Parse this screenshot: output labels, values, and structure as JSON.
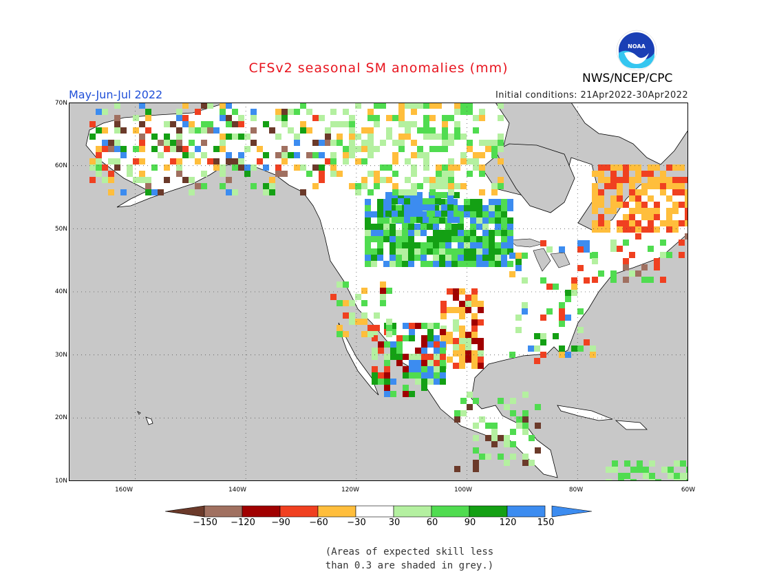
{
  "title": "CFSv2 seasonal SM anomalies (mm)",
  "season": "May-Jun-Jul 2022",
  "initial_conditions": "Initial conditions: 21Apr2022-30Apr2022",
  "agency": "NWS/NCEP/CPC",
  "logo_text": "NOAA",
  "map": {
    "lon_range": [
      -172,
      -60
    ],
    "lat_range": [
      10,
      70
    ],
    "lat_labels": [
      "70N",
      "60N",
      "50N",
      "40N",
      "30N",
      "20N",
      "10N"
    ],
    "lon_labels": [
      "160W",
      "140W",
      "120W",
      "100W",
      "80W",
      "60W"
    ]
  },
  "colorbar": {
    "labels": [
      "−150",
      "−120",
      "−90",
      "−60",
      "−30",
      "30",
      "60",
      "90",
      "120",
      "150"
    ],
    "colors": [
      "#6b3a2a",
      "#a07060",
      "#a00000",
      "#f04020",
      "#ffbe3c",
      "#ffffff",
      "#b4f0a0",
      "#50dc50",
      "#14a014",
      "#3c8cf0",
      "#3c8cf0"
    ]
  },
  "note": [
    "(Areas of expected skill less",
    "than 0.3 are shaded in grey.)"
  ],
  "colors": {
    "ocean": "#c8c8c8",
    "land": "#ffffff",
    "title": "#e8141e",
    "season": "#1f4fd8"
  }
}
